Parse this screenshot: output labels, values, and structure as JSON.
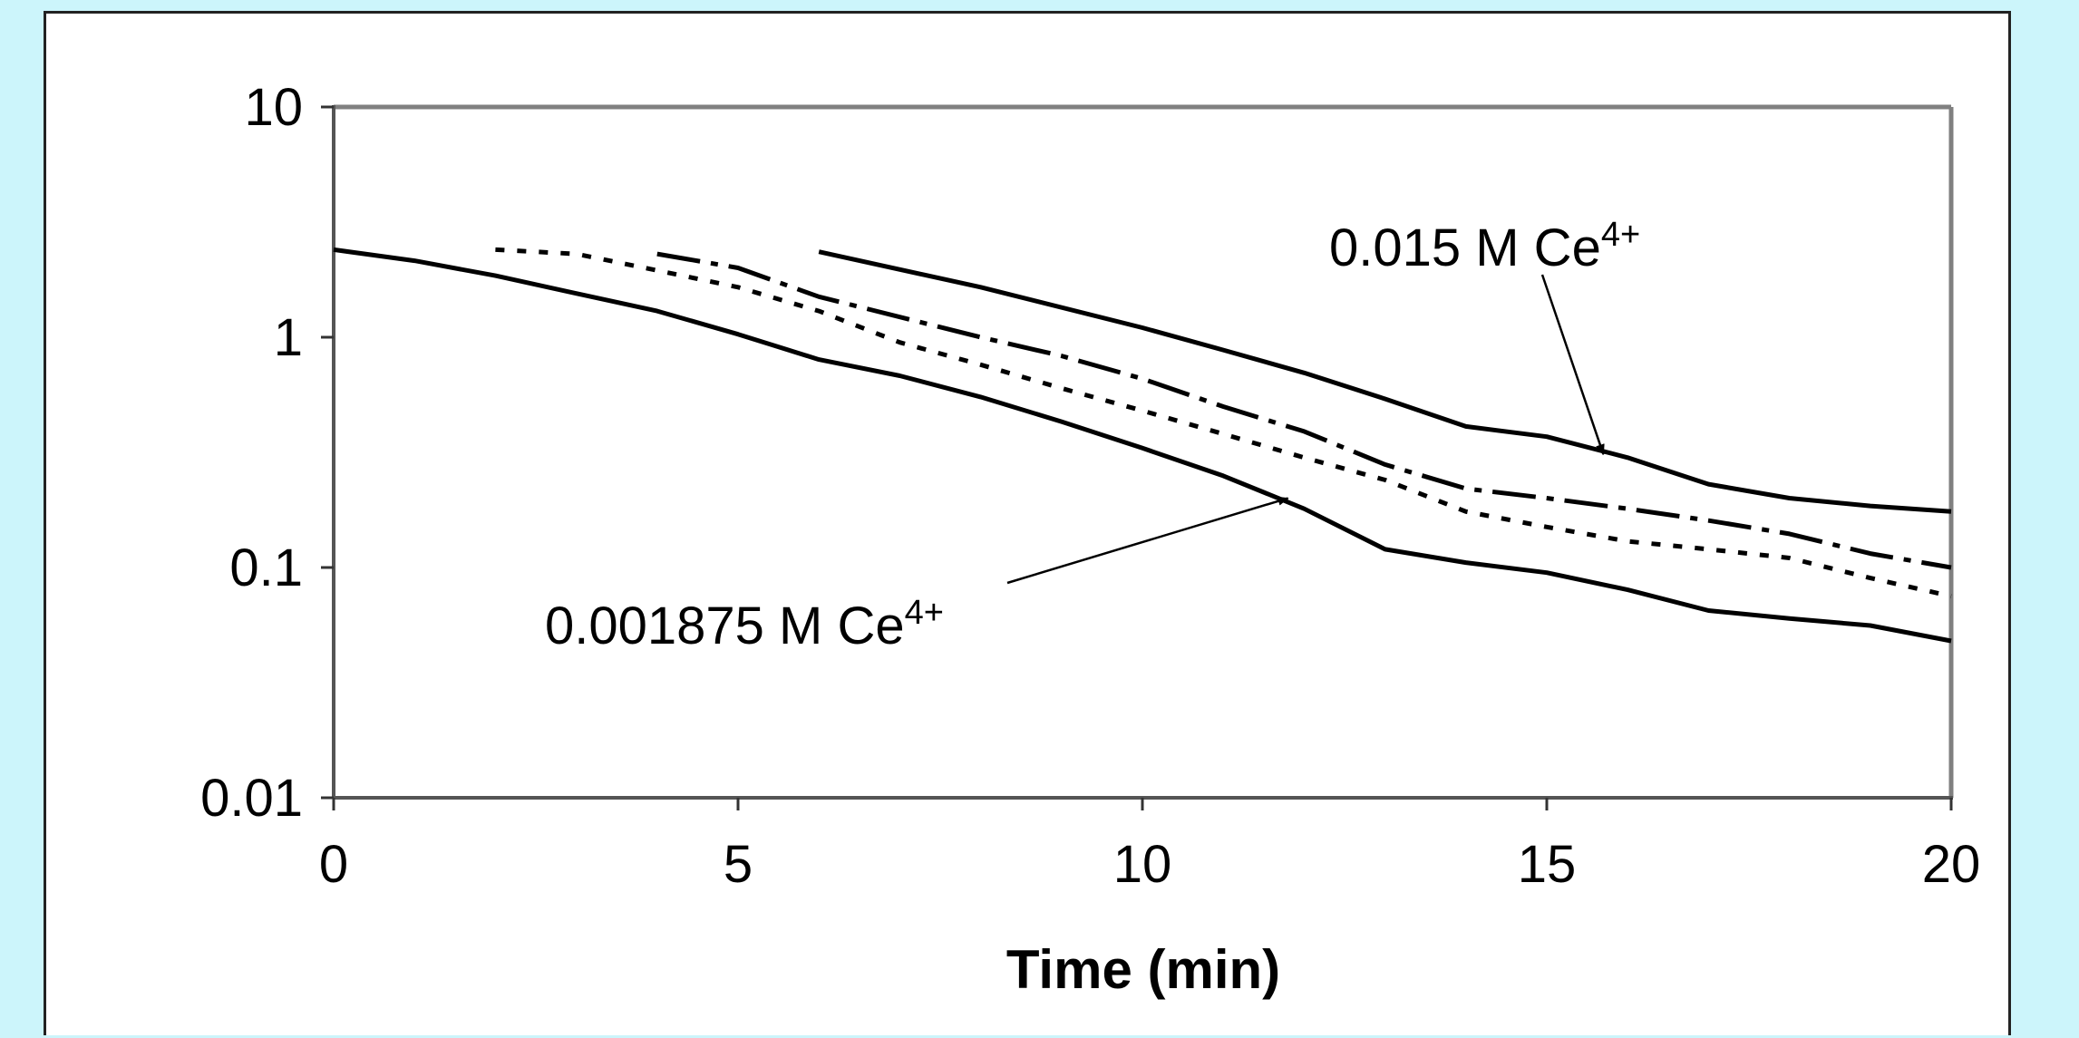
{
  "chart_data": {
    "type": "line",
    "title": "",
    "xlabel": "Time (min)",
    "ylabel": "",
    "xlim": [
      0,
      20
    ],
    "ylim": [
      0.01,
      10
    ],
    "yscale": "log",
    "grid": false,
    "xticks": [
      "0",
      "5",
      "10",
      "15",
      "20"
    ],
    "yticks": [
      "10",
      "1",
      "0.1",
      "0.01"
    ],
    "series": [
      {
        "dash": "solid+dashdot",
        "points": [
          [
            6,
            2.35
          ],
          [
            8,
            1.65
          ],
          [
            10,
            1.1
          ],
          [
            11,
            0.88
          ],
          [
            12,
            0.7
          ],
          [
            13,
            0.54
          ],
          [
            14,
            0.41
          ],
          [
            15,
            0.37
          ],
          [
            16,
            0.3
          ],
          [
            17,
            0.23
          ],
          [
            18,
            0.2
          ],
          [
            19,
            0.185
          ],
          [
            20,
            0.175
          ]
        ]
      },
      {
        "dash": "longdash-dot",
        "points": [
          [
            4,
            2.3
          ],
          [
            5,
            2.0
          ],
          [
            6,
            1.5
          ],
          [
            8,
            1.0
          ],
          [
            9,
            0.83
          ],
          [
            10,
            0.66
          ],
          [
            11,
            0.5
          ],
          [
            12,
            0.39
          ],
          [
            13,
            0.28
          ],
          [
            14,
            0.22
          ],
          [
            15,
            0.2
          ],
          [
            16,
            0.18
          ],
          [
            17,
            0.16
          ],
          [
            18,
            0.14
          ],
          [
            19,
            0.115
          ],
          [
            20,
            0.1
          ]
        ]
      },
      {
        "dash": "dotted",
        "points": [
          [
            2,
            2.4
          ],
          [
            3,
            2.3
          ],
          [
            4,
            1.95
          ],
          [
            5,
            1.65
          ],
          [
            6,
            1.3
          ],
          [
            7,
            0.95
          ],
          [
            8,
            0.76
          ],
          [
            9,
            0.6
          ],
          [
            10,
            0.48
          ],
          [
            11,
            0.38
          ],
          [
            12,
            0.3
          ],
          [
            13,
            0.24
          ],
          [
            14,
            0.175
          ],
          [
            15,
            0.15
          ],
          [
            16,
            0.13
          ],
          [
            17,
            0.12
          ],
          [
            18,
            0.11
          ],
          [
            19,
            0.09
          ],
          [
            20,
            0.075
          ]
        ]
      },
      {
        "dash": "solid+dashdot",
        "points": [
          [
            0,
            2.4
          ],
          [
            1,
            2.15
          ],
          [
            2,
            1.85
          ],
          [
            3,
            1.55
          ],
          [
            4,
            1.3
          ],
          [
            5,
            1.03
          ],
          [
            6,
            0.8
          ],
          [
            7,
            0.68
          ],
          [
            8,
            0.55
          ],
          [
            9,
            0.43
          ],
          [
            10,
            0.33
          ],
          [
            11,
            0.25
          ],
          [
            12,
            0.18
          ],
          [
            13,
            0.12
          ],
          [
            14,
            0.105
          ],
          [
            15,
            0.095
          ],
          [
            16,
            0.08
          ],
          [
            17,
            0.065
          ],
          [
            18,
            0.06
          ],
          [
            19,
            0.056
          ],
          [
            20,
            0.048
          ]
        ]
      }
    ],
    "annotations": [
      {
        "text": "0.015 M Ce",
        "sup": "4+",
        "x": 15.7,
        "y": 0.31
      },
      {
        "text": "0.001875 M Ce",
        "sup": "4+",
        "x": 11.8,
        "y": 0.2
      }
    ]
  }
}
